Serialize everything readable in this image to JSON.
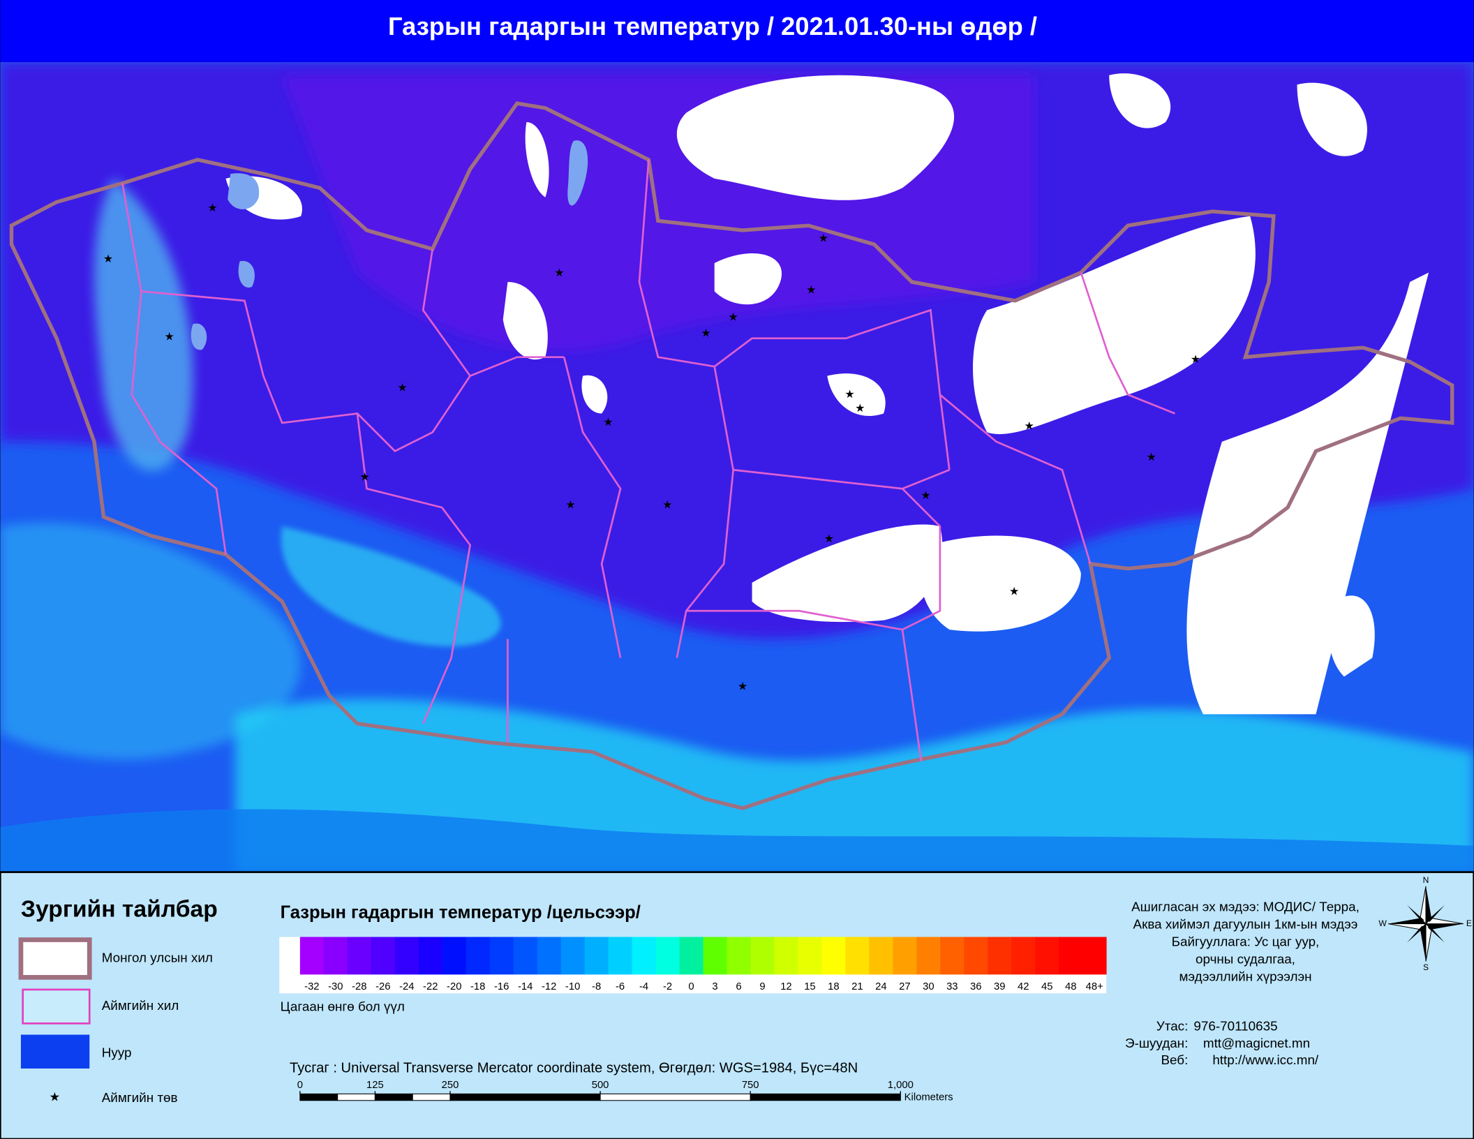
{
  "title": "Газрын гадаргын температур / 2021.01.30-ны өдөр /",
  "legend": {
    "heading": "Зургийн тайлбар",
    "items": [
      "Монгол улсын хил",
      "Аймгийн хил",
      "Нуур",
      "Аймгийн төв"
    ]
  },
  "color_scale": {
    "title": "Газрын гадаргын температур /цельсээр/",
    "labels": [
      -32,
      -30,
      -28,
      -26,
      -24,
      -22,
      -20,
      -18,
      -16,
      -14,
      -12,
      -10,
      -8,
      -6,
      -4,
      -2,
      0,
      3,
      6,
      9,
      12,
      15,
      18,
      21,
      24,
      27,
      30,
      33,
      36,
      39,
      42,
      45,
      48,
      "48+"
    ],
    "colors": [
      "#a300ff",
      "#8a00ff",
      "#6a00ff",
      "#4f00ff",
      "#3300ff",
      "#1a00ff",
      "#0010ff",
      "#0028ff",
      "#003cff",
      "#0055ff",
      "#0070ff",
      "#0090ff",
      "#00b0ff",
      "#00d0ff",
      "#00f0ff",
      "#00ffe0",
      "#00f0a0",
      "#60ff00",
      "#90ff00",
      "#b0ff00",
      "#d0ff00",
      "#e8ff00",
      "#ffff00",
      "#ffe000",
      "#ffc000",
      "#ffa000",
      "#ff8000",
      "#ff6000",
      "#ff4800",
      "#ff3000",
      "#ff2000",
      "#ff1000",
      "#ff0000",
      "#ff0000"
    ],
    "note": "Цагаан өнгө бол үүл"
  },
  "projection": "Тусгаг : Universal Transverse Mercator coordinate system, Өгөгдөл: WGS=1984, Бүс=48N",
  "scale_bar": {
    "ticks": [
      0,
      125,
      250,
      500,
      750,
      {
        "value": 1000,
        "label": "1,000"
      }
    ],
    "unit": "Kilometers"
  },
  "source": [
    "Ашигласан эх мэдээ: МОДИС/ Терра,",
    "Аква хиймэл дагуулын 1км-ын мэдээ",
    "Байгууллага: Ус цаг уур,",
    "орчны судалгаа,",
    "мэдээллийн хүрээлэн"
  ],
  "contacts": [
    {
      "label": "Утас:",
      "value": "976-70110635"
    },
    {
      "label": "Э-шуудан:",
      "value": "mtt@magicnet.mn"
    },
    {
      "label": "Веб:",
      "value": "http://www.icc.mn/"
    }
  ],
  "compass": [
    "N",
    "E",
    "S",
    "W"
  ]
}
